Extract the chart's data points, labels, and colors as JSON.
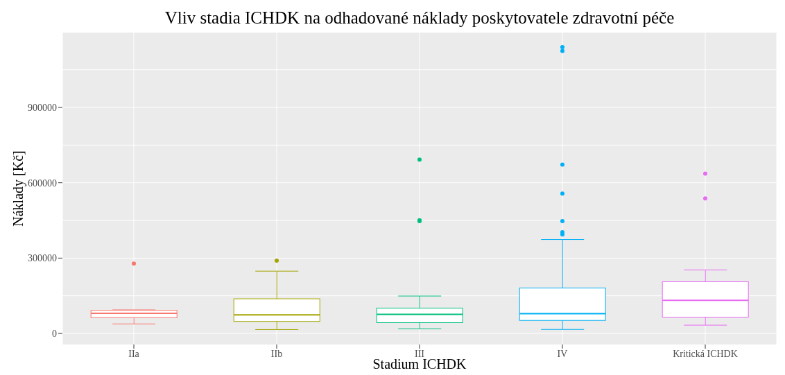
{
  "chart_data": {
    "type": "box",
    "title": "Vliv stadia ICHDK na odhadované náklady poskytovatele zdravotní péče",
    "xlabel": "Stadium ICHDK",
    "ylabel": "Náklady [Kč]",
    "categories": [
      "IIa",
      "IIb",
      "III",
      "IV",
      "Kritická ICHDK"
    ],
    "colors": [
      "#f8766d",
      "#a3a500",
      "#00bf7d",
      "#00b0f6",
      "#e76bf3"
    ],
    "boxes": [
      {
        "low": 38000,
        "q1": 63000,
        "median": 80000,
        "q3": 92000,
        "high": 94000,
        "outliers": [
          278000
        ]
      },
      {
        "low": 15500,
        "q1": 48000,
        "median": 74000,
        "q3": 138000,
        "high": 248000,
        "outliers": [
          290000
        ]
      },
      {
        "low": 18500,
        "q1": 43000,
        "median": 76000,
        "q3": 101000,
        "high": 149000,
        "outliers": [
          692000,
          451000,
          447000
        ]
      },
      {
        "low": 16000,
        "q1": 52000,
        "median": 79000,
        "q3": 181000,
        "high": 374000,
        "outliers": [
          1140000,
          1125000,
          672000,
          557000,
          447000,
          403000,
          394000
        ]
      },
      {
        "low": 33000,
        "q1": 65000,
        "median": 132000,
        "q3": 206000,
        "high": 253000,
        "outliers": [
          636000,
          538000
        ]
      }
    ],
    "ylim": [
      -44000,
      1198000
    ],
    "yticks": [
      0,
      300000,
      600000,
      900000
    ],
    "grid": true
  }
}
